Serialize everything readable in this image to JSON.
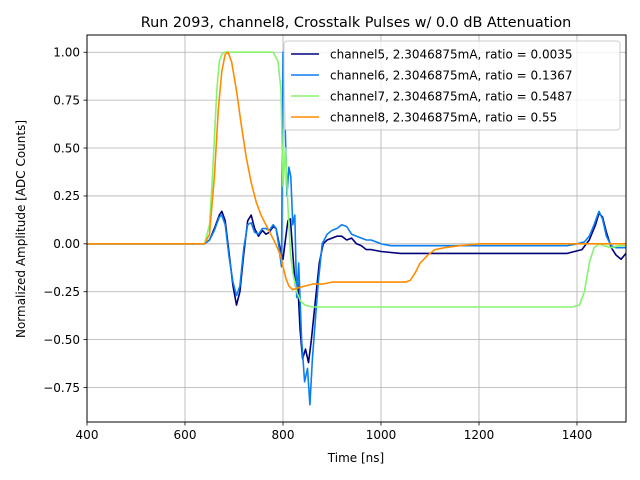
{
  "chart_data": {
    "type": "line",
    "title": "Run 2093, channel8, Crosstalk Pulses w/ 0.0 dB Attenuation",
    "xlabel": "Time [ns]",
    "ylabel": "Normalized Amplitude [ADC Counts]",
    "xlim": [
      400,
      1500
    ],
    "ylim": [
      -0.93,
      1.09
    ],
    "xticks": [
      400,
      600,
      800,
      1000,
      1200,
      1400
    ],
    "yticks": [
      -0.75,
      -0.5,
      -0.25,
      0.0,
      0.25,
      0.5,
      0.75,
      1.0
    ],
    "xtick_labels": [
      "400",
      "600",
      "800",
      "1000",
      "1200",
      "1400"
    ],
    "ytick_labels": [
      "−0.75",
      "−0.50",
      "−0.25",
      "0.00",
      "0.25",
      "0.50",
      "0.75",
      "1.00"
    ],
    "grid": true,
    "legend_position": "top-right",
    "series": [
      {
        "name": "channel5, 2.3046875mA, ratio = 0.0035",
        "color": "#00007f",
        "points": [
          [
            400,
            0
          ],
          [
            640,
            0
          ],
          [
            650,
            0.02
          ],
          [
            660,
            0.08
          ],
          [
            670,
            0.15
          ],
          [
            675,
            0.17
          ],
          [
            682,
            0.12
          ],
          [
            690,
            -0.05
          ],
          [
            698,
            -0.22
          ],
          [
            705,
            -0.32
          ],
          [
            712,
            -0.25
          ],
          [
            720,
            -0.05
          ],
          [
            728,
            0.12
          ],
          [
            735,
            0.15
          ],
          [
            742,
            0.08
          ],
          [
            750,
            0.04
          ],
          [
            758,
            0.07
          ],
          [
            765,
            0.05
          ],
          [
            772,
            0.06
          ],
          [
            780,
            0.09
          ],
          [
            786,
            0.08
          ],
          [
            792,
            0.0
          ],
          [
            800,
            -0.08
          ],
          [
            805,
            0.02
          ],
          [
            810,
            0.12
          ],
          [
            815,
            0.13
          ],
          [
            820,
            -0.05
          ],
          [
            825,
            -0.22
          ],
          [
            830,
            -0.2
          ],
          [
            835,
            -0.45
          ],
          [
            840,
            -0.6
          ],
          [
            846,
            -0.55
          ],
          [
            852,
            -0.62
          ],
          [
            858,
            -0.5
          ],
          [
            866,
            -0.3
          ],
          [
            874,
            -0.1
          ],
          [
            882,
            0.0
          ],
          [
            890,
            0.02
          ],
          [
            900,
            0.03
          ],
          [
            910,
            0.04
          ],
          [
            920,
            0.04
          ],
          [
            930,
            0.02
          ],
          [
            940,
            0.03
          ],
          [
            950,
            0.0
          ],
          [
            960,
            -0.01
          ],
          [
            970,
            -0.03
          ],
          [
            980,
            -0.03
          ],
          [
            1000,
            -0.04
          ],
          [
            1040,
            -0.05
          ],
          [
            1100,
            -0.05
          ],
          [
            1200,
            -0.05
          ],
          [
            1300,
            -0.05
          ],
          [
            1380,
            -0.05
          ],
          [
            1410,
            -0.03
          ],
          [
            1425,
            0.02
          ],
          [
            1438,
            0.1
          ],
          [
            1445,
            0.16
          ],
          [
            1452,
            0.14
          ],
          [
            1460,
            0.06
          ],
          [
            1470,
            -0.02
          ],
          [
            1480,
            -0.06
          ],
          [
            1490,
            -0.08
          ],
          [
            1500,
            -0.05
          ]
        ]
      },
      {
        "name": "channel6, 2.3046875mA, ratio = 0.1367",
        "color": "#0a7ff0",
        "points": [
          [
            400,
            0
          ],
          [
            640,
            0
          ],
          [
            650,
            0.02
          ],
          [
            660,
            0.07
          ],
          [
            670,
            0.14
          ],
          [
            675,
            0.15
          ],
          [
            682,
            0.1
          ],
          [
            690,
            -0.07
          ],
          [
            698,
            -0.2
          ],
          [
            705,
            -0.27
          ],
          [
            712,
            -0.22
          ],
          [
            720,
            -0.02
          ],
          [
            728,
            0.1
          ],
          [
            735,
            0.11
          ],
          [
            742,
            0.06
          ],
          [
            750,
            0.05
          ],
          [
            758,
            0.08
          ],
          [
            765,
            0.08
          ],
          [
            772,
            0.07
          ],
          [
            780,
            0.1
          ],
          [
            786,
            0.08
          ],
          [
            792,
            -0.02
          ],
          [
            797,
            -0.12
          ],
          [
            800,
            1.0
          ],
          [
            804,
            0.65
          ],
          [
            808,
            0.25
          ],
          [
            812,
            0.4
          ],
          [
            816,
            0.35
          ],
          [
            820,
            0.1
          ],
          [
            824,
            0.15
          ],
          [
            828,
            -0.28
          ],
          [
            832,
            -0.1
          ],
          [
            838,
            -0.5
          ],
          [
            844,
            -0.72
          ],
          [
            850,
            -0.65
          ],
          [
            855,
            -0.84
          ],
          [
            860,
            -0.6
          ],
          [
            866,
            -0.4
          ],
          [
            872,
            -0.2
          ],
          [
            880,
            0.0
          ],
          [
            890,
            0.05
          ],
          [
            900,
            0.07
          ],
          [
            910,
            0.08
          ],
          [
            920,
            0.1
          ],
          [
            930,
            0.09
          ],
          [
            940,
            0.05
          ],
          [
            950,
            0.04
          ],
          [
            960,
            0.03
          ],
          [
            970,
            0.02
          ],
          [
            980,
            0.02
          ],
          [
            1000,
            0.0
          ],
          [
            1020,
            -0.01
          ],
          [
            1050,
            -0.01
          ],
          [
            1100,
            -0.01
          ],
          [
            1200,
            -0.01
          ],
          [
            1300,
            -0.01
          ],
          [
            1380,
            -0.01
          ],
          [
            1400,
            0.0
          ],
          [
            1415,
            0.01
          ],
          [
            1425,
            0.04
          ],
          [
            1435,
            0.1
          ],
          [
            1445,
            0.17
          ],
          [
            1452,
            0.13
          ],
          [
            1460,
            0.04
          ],
          [
            1470,
            -0.01
          ],
          [
            1480,
            -0.02
          ],
          [
            1500,
            -0.02
          ]
        ]
      },
      {
        "name": "channel7, 2.3046875mA, ratio = 0.5487",
        "color": "#86f36c",
        "points": [
          [
            400,
            0
          ],
          [
            640,
            0
          ],
          [
            650,
            0.1
          ],
          [
            655,
            0.3
          ],
          [
            660,
            0.55
          ],
          [
            665,
            0.8
          ],
          [
            670,
            0.95
          ],
          [
            675,
            0.99
          ],
          [
            680,
            1.0
          ],
          [
            700,
            1.0
          ],
          [
            780,
            1.0
          ],
          [
            790,
            0.95
          ],
          [
            796,
            0.8
          ],
          [
            800,
            0.3
          ],
          [
            805,
            0.5
          ],
          [
            810,
            0.2
          ],
          [
            815,
            -0.05
          ],
          [
            820,
            -0.15
          ],
          [
            828,
            -0.25
          ],
          [
            836,
            -0.3
          ],
          [
            845,
            -0.32
          ],
          [
            860,
            -0.33
          ],
          [
            900,
            -0.33
          ],
          [
            1000,
            -0.33
          ],
          [
            1100,
            -0.33
          ],
          [
            1200,
            -0.33
          ],
          [
            1300,
            -0.33
          ],
          [
            1390,
            -0.33
          ],
          [
            1405,
            -0.32
          ],
          [
            1415,
            -0.25
          ],
          [
            1425,
            -0.1
          ],
          [
            1435,
            -0.02
          ],
          [
            1445,
            0.0
          ],
          [
            1455,
            -0.01
          ],
          [
            1470,
            -0.02
          ],
          [
            1485,
            -0.01
          ],
          [
            1500,
            -0.01
          ]
        ]
      },
      {
        "name": "channel8, 2.3046875mA, ratio = 0.55",
        "color": "#ff8c00",
        "points": [
          [
            400,
            0
          ],
          [
            640,
            0
          ],
          [
            650,
            0.05
          ],
          [
            660,
            0.35
          ],
          [
            668,
            0.7
          ],
          [
            675,
            0.9
          ],
          [
            682,
            0.99
          ],
          [
            688,
            1.0
          ],
          [
            695,
            0.95
          ],
          [
            705,
            0.8
          ],
          [
            715,
            0.62
          ],
          [
            725,
            0.45
          ],
          [
            735,
            0.32
          ],
          [
            745,
            0.22
          ],
          [
            755,
            0.15
          ],
          [
            765,
            0.1
          ],
          [
            775,
            0.05
          ],
          [
            785,
            0.0
          ],
          [
            795,
            -0.06
          ],
          [
            800,
            -0.12
          ],
          [
            806,
            -0.18
          ],
          [
            812,
            -0.22
          ],
          [
            820,
            -0.24
          ],
          [
            830,
            -0.23
          ],
          [
            845,
            -0.22
          ],
          [
            860,
            -0.21
          ],
          [
            880,
            -0.21
          ],
          [
            900,
            -0.2
          ],
          [
            950,
            -0.2
          ],
          [
            1000,
            -0.2
          ],
          [
            1050,
            -0.2
          ],
          [
            1060,
            -0.19
          ],
          [
            1070,
            -0.15
          ],
          [
            1080,
            -0.1
          ],
          [
            1095,
            -0.06
          ],
          [
            1110,
            -0.03
          ],
          [
            1130,
            -0.02
          ],
          [
            1160,
            -0.01
          ],
          [
            1200,
            0.0
          ],
          [
            1300,
            0.0
          ],
          [
            1400,
            0.0
          ],
          [
            1450,
            0.0
          ],
          [
            1500,
            0.0
          ]
        ]
      }
    ]
  }
}
